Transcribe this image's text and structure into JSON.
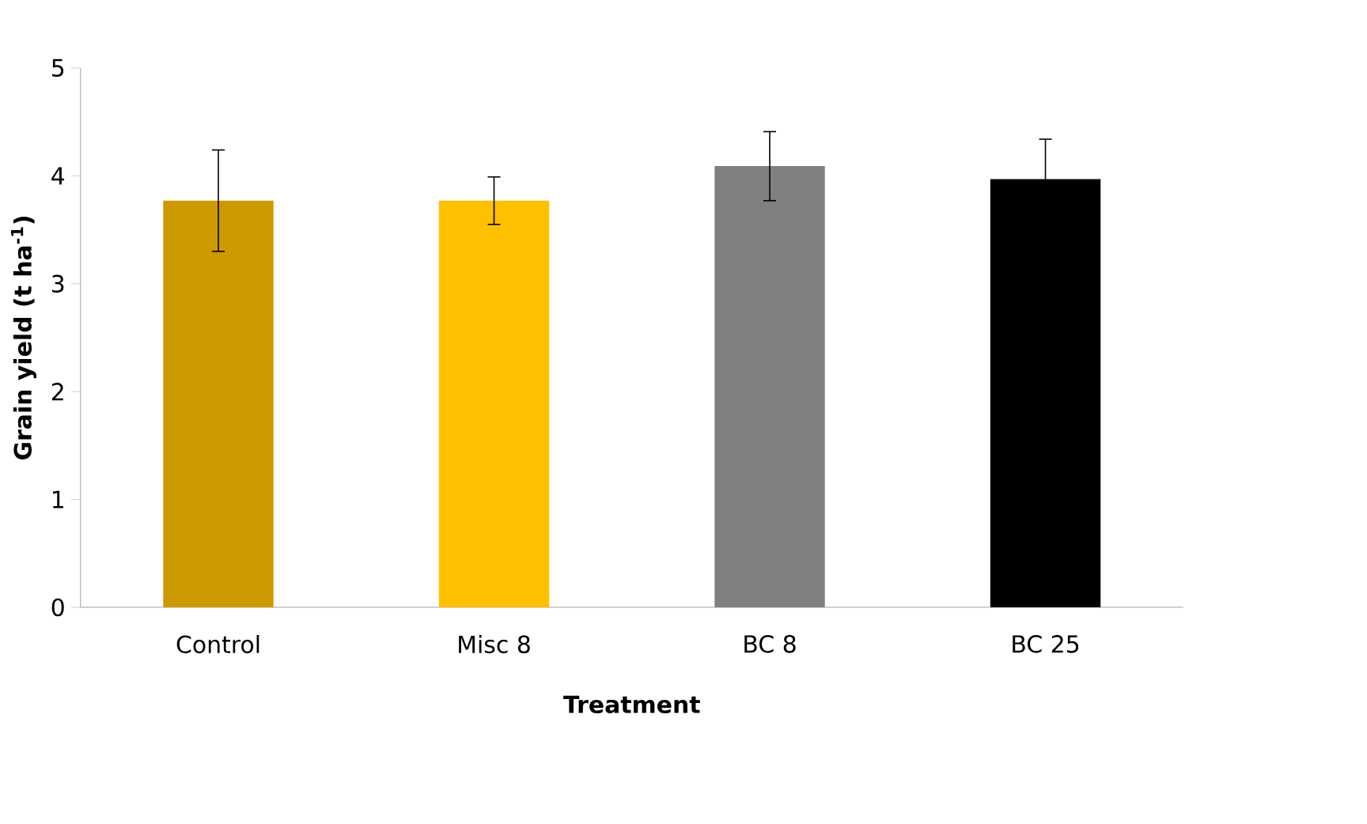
{
  "chart_data": {
    "type": "bar",
    "xlabel": "Treatment",
    "ylabel": "Grain yield (t ha$^{-1}$)",
    "categories": [
      "Control",
      "Misc 8",
      "BC 8",
      "BC 25"
    ],
    "values": [
      3.77,
      3.77,
      4.09,
      3.97
    ],
    "errors": [
      0.47,
      0.22,
      0.32,
      0.37
    ],
    "colors": [
      "#cc9900",
      "#ffc000",
      "#808080",
      "#000000"
    ],
    "ylim": [
      0,
      5
    ],
    "yticks": [
      0,
      1,
      2,
      3,
      4,
      5
    ],
    "grid": false
  }
}
